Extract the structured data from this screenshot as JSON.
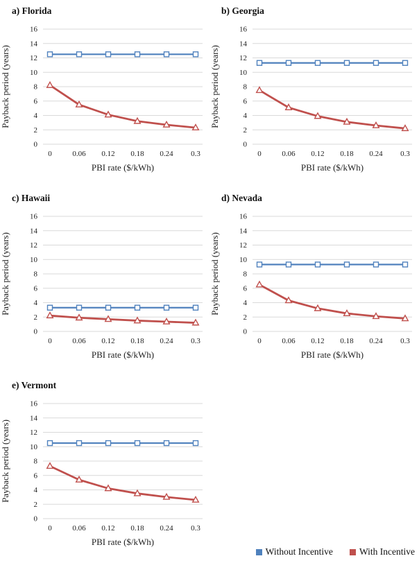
{
  "figure": {
    "background": "#ffffff"
  },
  "colors": {
    "without_incentive": "#4F81BD",
    "with_incentive": "#C0504D",
    "gridline": "#D9D9D9",
    "marker_fill": "#FFFFFF",
    "text": "#1F1F1F"
  },
  "legend": {
    "items": [
      {
        "label": "Without Incentive",
        "color": "#4F81BD",
        "marker": "square"
      },
      {
        "label": "With Incentive",
        "color": "#C0504D",
        "marker": "triangle"
      }
    ],
    "position": "bottom-right"
  },
  "axes": {
    "xlabel": "PBI rate ($/kWh)",
    "ylabel": "Payback period (years)",
    "ylim": [
      0,
      16
    ],
    "ytick_step": 2,
    "xticks": [
      "0",
      "0.06",
      "0.12",
      "0.18",
      "0.24",
      "0.3"
    ],
    "grid": "horizontal"
  },
  "chart_data": [
    {
      "type": "line",
      "title": "a) Florida",
      "x": [
        0,
        0.06,
        0.12,
        0.18,
        0.24,
        0.3
      ],
      "series": [
        {
          "name": "Without Incentive",
          "values": [
            12.5,
            12.5,
            12.5,
            12.5,
            12.5,
            12.5
          ]
        },
        {
          "name": "With Incentive",
          "values": [
            8.2,
            5.5,
            4.1,
            3.2,
            2.7,
            2.3
          ]
        }
      ]
    },
    {
      "type": "line",
      "title": "b) Georgia",
      "x": [
        0,
        0.06,
        0.12,
        0.18,
        0.24,
        0.3
      ],
      "series": [
        {
          "name": "Without Incentive",
          "values": [
            11.3,
            11.3,
            11.3,
            11.3,
            11.3,
            11.3
          ]
        },
        {
          "name": "With Incentive",
          "values": [
            7.5,
            5.1,
            3.9,
            3.1,
            2.6,
            2.2
          ]
        }
      ]
    },
    {
      "type": "line",
      "title": "c) Hawaii",
      "x": [
        0,
        0.06,
        0.12,
        0.18,
        0.24,
        0.3
      ],
      "series": [
        {
          "name": "Without Incentive",
          "values": [
            3.3,
            3.3,
            3.3,
            3.3,
            3.3,
            3.3
          ]
        },
        {
          "name": "With Incentive",
          "values": [
            2.2,
            1.9,
            1.7,
            1.5,
            1.35,
            1.2
          ]
        }
      ]
    },
    {
      "type": "line",
      "title": "d) Nevada",
      "x": [
        0,
        0.06,
        0.12,
        0.18,
        0.24,
        0.3
      ],
      "series": [
        {
          "name": "Without Incentive",
          "values": [
            9.3,
            9.3,
            9.3,
            9.3,
            9.3,
            9.3
          ]
        },
        {
          "name": "With Incentive",
          "values": [
            6.5,
            4.3,
            3.2,
            2.5,
            2.1,
            1.8
          ]
        }
      ]
    },
    {
      "type": "line",
      "title": "e) Vermont",
      "x": [
        0,
        0.06,
        0.12,
        0.18,
        0.24,
        0.3
      ],
      "series": [
        {
          "name": "Without Incentive",
          "values": [
            10.5,
            10.5,
            10.5,
            10.5,
            10.5,
            10.5
          ]
        },
        {
          "name": "With Incentive",
          "values": [
            7.3,
            5.4,
            4.2,
            3.5,
            3.0,
            2.6
          ]
        }
      ]
    }
  ]
}
